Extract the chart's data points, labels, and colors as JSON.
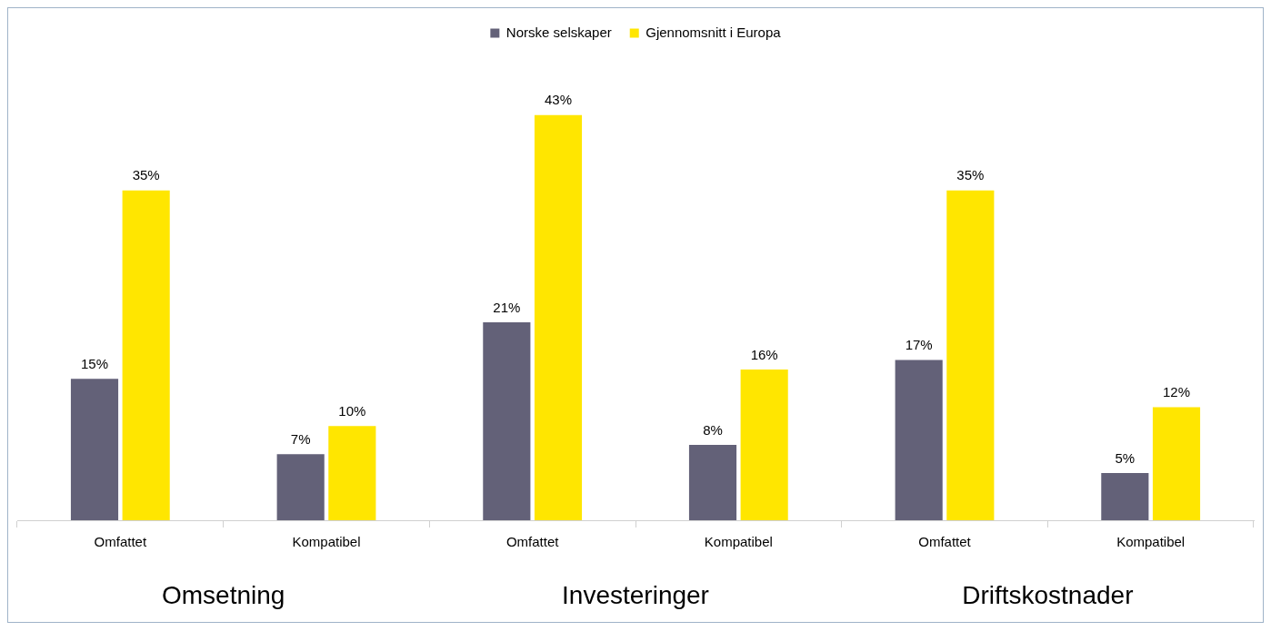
{
  "chart_data": {
    "type": "bar",
    "categories": [
      "Omfattet",
      "Kompatibel",
      "Omfattet",
      "Kompatibel",
      "Omfattet",
      "Kompatibel"
    ],
    "series": [
      {
        "name": "Norske selskaper",
        "color": "#636178",
        "values": [
          15,
          7,
          21,
          8,
          17,
          5
        ],
        "value_labels": [
          "15%",
          "7%",
          "21%",
          "8%",
          "17%",
          "5%"
        ]
      },
      {
        "name": "Gjennomsnitt i Europa",
        "color": "#ffe600",
        "values": [
          35,
          10,
          43,
          16,
          35,
          12
        ],
        "value_labels": [
          "35%",
          "10%",
          "43%",
          "16%",
          "35%",
          "12%"
        ]
      }
    ],
    "tick_labels": "x",
    "grid": false,
    "legend": "top",
    "annotations": [
      "Omsetning",
      "Investeringer",
      "Driftskostnader"
    ]
  }
}
